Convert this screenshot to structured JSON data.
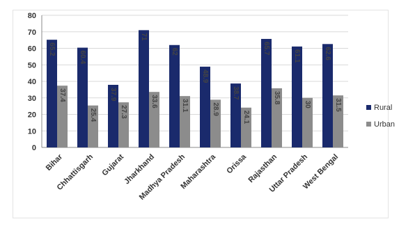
{
  "chart_data": {
    "type": "bar",
    "title": "",
    "xlabel": "",
    "ylabel": "",
    "ylim": [
      0,
      80
    ],
    "yticks": [
      0,
      10,
      20,
      30,
      40,
      50,
      60,
      70,
      80
    ],
    "grid": true,
    "legend_position": "right",
    "categories": [
      "Bihar",
      "Chhattisgarh",
      "Gujarat",
      "Jharkhand",
      "Madhya Pradesh",
      "Maharashtra",
      "Orissa",
      "Rajasthan",
      "Uttar Pradesh",
      "West Bengal"
    ],
    "series": [
      {
        "name": "Rural",
        "color": "#1a2a6c",
        "values": [
          65.2,
          60.4,
          37.9,
          71,
          62,
          48.9,
          38.7,
          65.7,
          61.1,
          62.6
        ],
        "labels": [
          "65.2",
          "60.4",
          "37.9",
          "71",
          "62",
          "48.9",
          "38.7",
          "65.7",
          "61.1",
          "62.6"
        ]
      },
      {
        "name": "Urban",
        "color": "#8c8c8c",
        "values": [
          37.4,
          25.4,
          27.3,
          33.6,
          31.1,
          28.9,
          24.1,
          35.8,
          30,
          31.5
        ],
        "labels": [
          "37.4",
          "25.4",
          "27.3",
          "33.6",
          "31.1",
          "28.9",
          "24.1",
          "35.8",
          "30",
          "31.5"
        ]
      }
    ],
    "legend": [
      {
        "label": "Rural",
        "color": "#1a2a6c"
      },
      {
        "label": "Urban",
        "color": "#8c8c8c"
      }
    ]
  }
}
